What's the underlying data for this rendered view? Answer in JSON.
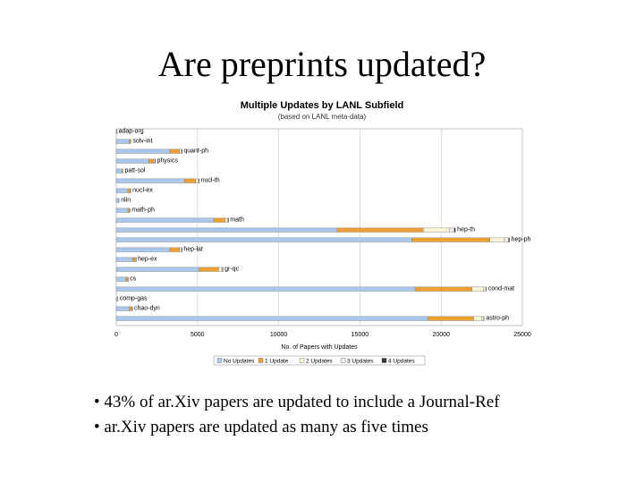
{
  "slide": {
    "title": "Are preprints updated?",
    "bullets": [
      "43% of ar.Xiv papers are updated to include a Journal-Ref",
      "ar.Xiv papers are updated as many as five times"
    ]
  },
  "chart_data": {
    "type": "bar",
    "orientation": "horizontal",
    "stacked": true,
    "title": "Multiple Updates by LANL Subfield",
    "subtitle": "(based on LANL meta-data)",
    "xlabel": "No. of Papers with Updates",
    "xlim": [
      0,
      25000
    ],
    "xticks": [
      "0",
      "5000",
      "10000",
      "15000",
      "20000",
      "25000"
    ],
    "grid": true,
    "legend_position": "bottom",
    "categories": [
      "adap-org",
      "solv-int",
      "quant-ph",
      "physics",
      "patt-sol",
      "nucl-th",
      "nucl-ex",
      "nlin",
      "math-ph",
      "math",
      "hep-th",
      "hep-ph",
      "hep-lat",
      "hep-ex",
      "gr-qc",
      "cs",
      "cond-mat",
      "comp-gas",
      "chao-dyn",
      "astro-ph"
    ],
    "series": [
      {
        "name": "No Updates",
        "color": "#a9c8ee",
        "values": [
          30,
          800,
          3300,
          2000,
          350,
          4200,
          700,
          150,
          700,
          6000,
          13600,
          18200,
          3300,
          1000,
          5100,
          600,
          18400,
          80,
          800,
          19200
        ]
      },
      {
        "name": "1 Update",
        "color": "#f0a030",
        "values": [
          5,
          80,
          600,
          300,
          60,
          700,
          150,
          30,
          100,
          700,
          5300,
          4800,
          600,
          150,
          1200,
          100,
          3500,
          20,
          150,
          2800
        ]
      },
      {
        "name": "2 Updates",
        "color": "#fbf5d8",
        "values": [
          0,
          20,
          100,
          70,
          0,
          150,
          30,
          0,
          30,
          150,
          1600,
          900,
          100,
          50,
          200,
          20,
          700,
          0,
          30,
          500
        ]
      },
      {
        "name": "3 Updates",
        "color": "#eeeeee",
        "values": [
          0,
          0,
          30,
          20,
          0,
          40,
          10,
          0,
          10,
          40,
          300,
          250,
          30,
          10,
          50,
          5,
          150,
          0,
          10,
          120
        ]
      },
      {
        "name": "4 Updates",
        "color": "#333333",
        "values": [
          0,
          0,
          10,
          5,
          0,
          10,
          0,
          0,
          0,
          10,
          80,
          60,
          10,
          5,
          10,
          0,
          40,
          0,
          0,
          30
        ]
      }
    ]
  }
}
